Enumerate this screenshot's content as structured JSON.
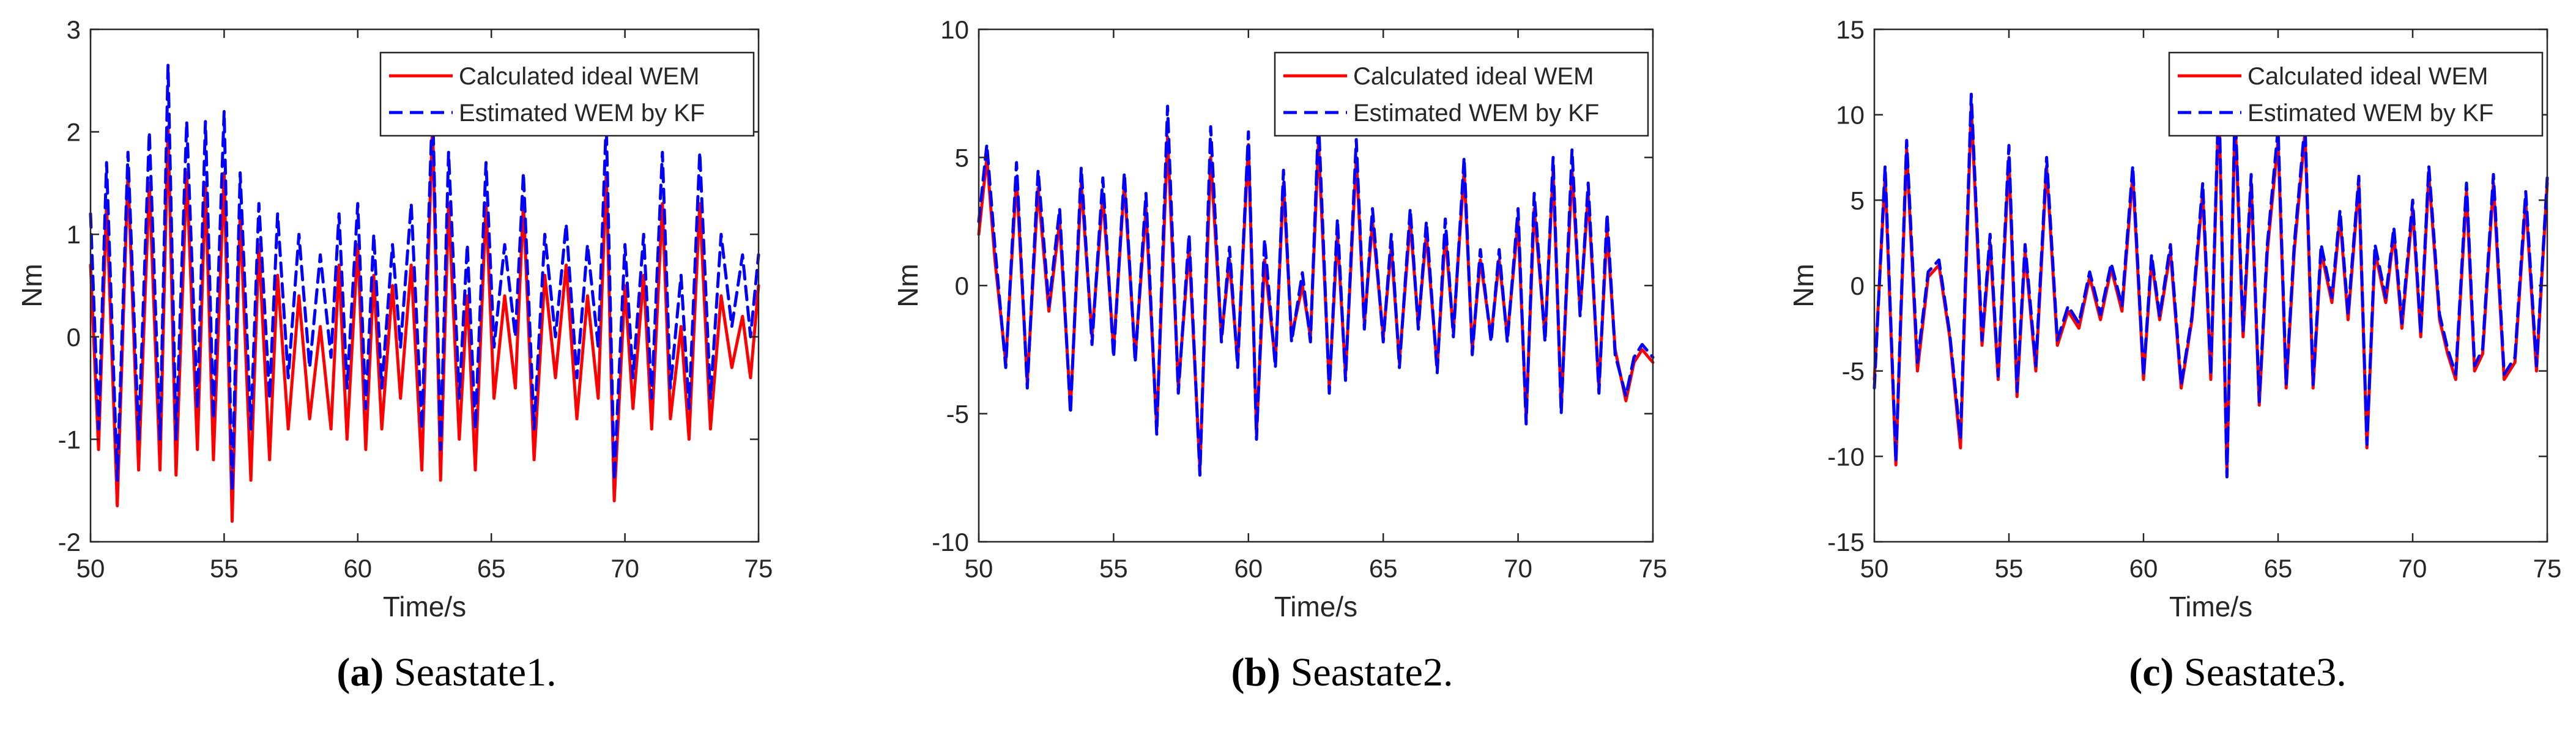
{
  "chart_data": [
    {
      "type": "line",
      "panel": "a",
      "caption_label": "(a)",
      "caption_text": "Seastate1.",
      "xlabel": "Time/s",
      "ylabel": "Nm",
      "xlim": [
        50,
        75
      ],
      "ylim": [
        -2,
        3
      ],
      "xticks": [
        50,
        55,
        60,
        65,
        70,
        75
      ],
      "yticks": [
        -2,
        -1,
        0,
        1,
        2,
        3
      ],
      "legend_position": "top-right",
      "x": [
        50.0,
        50.3,
        50.6,
        51.0,
        51.4,
        51.8,
        52.2,
        52.6,
        52.9,
        53.2,
        53.6,
        54.0,
        54.3,
        54.6,
        55.0,
        55.3,
        55.6,
        56.0,
        56.3,
        56.7,
        57.0,
        57.4,
        57.8,
        58.2,
        58.6,
        59.0,
        59.3,
        59.6,
        60.0,
        60.3,
        60.6,
        60.9,
        61.3,
        61.6,
        62.0,
        62.4,
        62.8,
        63.1,
        63.4,
        63.8,
        64.1,
        64.4,
        64.8,
        65.1,
        65.5,
        65.9,
        66.2,
        66.6,
        67.0,
        67.4,
        67.8,
        68.2,
        68.6,
        69.0,
        69.3,
        69.6,
        70.0,
        70.3,
        70.7,
        71.0,
        71.4,
        71.7,
        72.1,
        72.4,
        72.8,
        73.2,
        73.6,
        74.0,
        74.4,
        74.7,
        75.0
      ],
      "series": [
        {
          "name": "Calculated ideal WEM",
          "color": "#ff0000",
          "dash": "solid",
          "values": [
            0.7,
            -1.1,
            1.3,
            -1.65,
            1.6,
            -1.3,
            1.5,
            -1.3,
            2.05,
            -1.35,
            1.6,
            -1.1,
            1.5,
            -1.2,
            1.6,
            -1.8,
            1.2,
            -1.4,
            0.9,
            -1.2,
            0.6,
            -0.9,
            0.4,
            -0.8,
            0.1,
            -0.9,
            0.7,
            -1.0,
            0.9,
            -1.1,
            0.6,
            -0.9,
            0.5,
            -0.6,
            0.7,
            -1.3,
            2.1,
            -1.4,
            1.3,
            -1.0,
            0.4,
            -1.3,
            1.3,
            -0.6,
            0.4,
            -0.5,
            1.3,
            -1.2,
            0.6,
            -0.4,
            0.7,
            -0.8,
            0.4,
            -0.6,
            1.6,
            -1.6,
            0.5,
            -0.7,
            0.6,
            -0.9,
            1.3,
            -0.8,
            0.1,
            -1.0,
            1.3,
            -0.9,
            0.4,
            -0.3,
            0.2,
            -0.4,
            0.5
          ]
        },
        {
          "name": "Estimated WEM by KF",
          "color": "#0000ff",
          "dash": "dashed",
          "values": [
            1.2,
            -0.9,
            1.7,
            -1.4,
            1.8,
            -1.0,
            2.0,
            -1.0,
            2.65,
            -1.0,
            2.1,
            -0.7,
            2.1,
            -0.8,
            2.2,
            -1.5,
            1.6,
            -0.9,
            1.3,
            -0.6,
            1.2,
            -0.4,
            1.0,
            -0.3,
            0.8,
            -0.2,
            1.2,
            -0.5,
            1.3,
            -0.7,
            1.0,
            -0.5,
            0.9,
            -0.1,
            1.3,
            -0.9,
            2.3,
            -1.1,
            1.8,
            -0.6,
            0.9,
            -0.9,
            1.7,
            -0.1,
            0.9,
            0.0,
            1.6,
            -0.9,
            1.0,
            0.0,
            1.1,
            -0.4,
            0.9,
            -0.1,
            2.1,
            -1.4,
            0.9,
            -0.4,
            1.0,
            -0.6,
            1.8,
            -0.5,
            0.6,
            -0.7,
            1.8,
            -0.6,
            1.0,
            0.1,
            0.8,
            0.0,
            0.8
          ]
        }
      ]
    },
    {
      "type": "line",
      "panel": "b",
      "caption_label": "(b)",
      "caption_text": "Seastate2.",
      "xlabel": "Time/s",
      "ylabel": "Nm",
      "xlim": [
        50,
        75
      ],
      "ylim": [
        -10,
        10
      ],
      "xticks": [
        50,
        55,
        60,
        65,
        70,
        75
      ],
      "yticks": [
        -10,
        -5,
        0,
        5,
        10
      ],
      "legend_position": "top-right",
      "x": [
        50.0,
        50.3,
        50.6,
        51.0,
        51.4,
        51.8,
        52.2,
        52.6,
        53.0,
        53.4,
        53.8,
        54.2,
        54.6,
        55.0,
        55.4,
        55.8,
        56.2,
        56.6,
        57.0,
        57.4,
        57.8,
        58.2,
        58.6,
        59.0,
        59.3,
        59.6,
        60.0,
        60.3,
        60.6,
        61.0,
        61.3,
        61.6,
        62.0,
        62.3,
        62.6,
        63.0,
        63.3,
        63.6,
        64.0,
        64.3,
        64.6,
        65.0,
        65.3,
        65.6,
        66.0,
        66.3,
        66.6,
        67.0,
        67.3,
        67.6,
        68.0,
        68.3,
        68.6,
        69.0,
        69.3,
        69.6,
        70.0,
        70.3,
        70.6,
        71.0,
        71.3,
        71.6,
        72.0,
        72.3,
        72.6,
        73.0,
        73.3,
        73.6,
        74.0,
        74.3,
        74.6,
        75.0
      ],
      "series": [
        {
          "name": "Calculated ideal WEM",
          "color": "#ff0000",
          "dash": "solid",
          "values": [
            2.0,
            5.0,
            1.0,
            -3.0,
            4.2,
            -3.8,
            3.8,
            -1.0,
            2.5,
            -4.8,
            4.0,
            -2.0,
            3.5,
            -2.5,
            4.0,
            -2.8,
            3.0,
            -5.6,
            5.8,
            -4.0,
            1.5,
            -7.2,
            5.0,
            -2.0,
            1.0,
            -3.0,
            5.5,
            -5.8,
            1.0,
            -3.0,
            4.0,
            -2.0,
            0.0,
            -2.0,
            5.6,
            -4.0,
            2.0,
            -3.5,
            5.0,
            -1.5,
            2.5,
            -2.0,
            1.5,
            -3.0,
            2.5,
            -1.5,
            2.0,
            -3.2,
            2.0,
            -1.8,
            4.5,
            -2.5,
            1.0,
            -2.0,
            1.0,
            -2.0,
            2.5,
            -5.2,
            3.0,
            -2.0,
            4.5,
            -4.8,
            4.5,
            -1.0,
            3.5,
            -4.0,
            2.2,
            -2.5,
            -4.5,
            -3.0,
            -2.5,
            -3.0
          ]
        },
        {
          "name": "Estimated WEM by KF",
          "color": "#0000ff",
          "dash": "dashed",
          "values": [
            2.5,
            5.5,
            1.5,
            -3.2,
            4.8,
            -4.0,
            4.5,
            -0.8,
            3.0,
            -5.0,
            4.6,
            -2.3,
            4.2,
            -2.8,
            4.4,
            -3.0,
            3.6,
            -5.8,
            7.0,
            -4.2,
            2.0,
            -7.4,
            6.2,
            -2.2,
            1.5,
            -3.2,
            6.0,
            -6.0,
            1.8,
            -3.2,
            4.5,
            -2.2,
            0.5,
            -2.2,
            6.5,
            -4.2,
            2.6,
            -3.7,
            5.7,
            -1.7,
            3.0,
            -2.2,
            2.0,
            -3.2,
            3.0,
            -1.7,
            2.5,
            -3.4,
            2.6,
            -2.0,
            5.0,
            -2.7,
            1.4,
            -2.2,
            1.4,
            -2.2,
            3.0,
            -5.4,
            3.6,
            -2.2,
            5.0,
            -5.0,
            5.3,
            -1.2,
            4.0,
            -4.2,
            2.8,
            -2.7,
            -4.3,
            -2.8,
            -2.3,
            -2.8
          ]
        }
      ]
    },
    {
      "type": "line",
      "panel": "c",
      "caption_label": "(c)",
      "caption_text": "Seastate3.",
      "xlabel": "Time/s",
      "ylabel": "Nm",
      "xlim": [
        50,
        75
      ],
      "ylim": [
        -15,
        15
      ],
      "xticks": [
        50,
        55,
        60,
        65,
        70,
        75
      ],
      "yticks": [
        -15,
        -10,
        -5,
        0,
        5,
        10,
        15
      ],
      "legend_position": "top-right",
      "x": [
        50.0,
        50.4,
        50.8,
        51.2,
        51.6,
        52.0,
        52.4,
        52.8,
        53.2,
        53.6,
        54.0,
        54.3,
        54.6,
        55.0,
        55.3,
        55.6,
        56.0,
        56.4,
        56.8,
        57.2,
        57.6,
        58.0,
        58.4,
        58.8,
        59.2,
        59.6,
        60.0,
        60.3,
        60.6,
        61.0,
        61.4,
        61.8,
        62.2,
        62.5,
        62.8,
        63.1,
        63.4,
        63.7,
        64.0,
        64.3,
        64.6,
        65.0,
        65.3,
        65.6,
        66.0,
        66.3,
        66.6,
        67.0,
        67.3,
        67.6,
        68.0,
        68.3,
        68.6,
        69.0,
        69.3,
        69.6,
        70.0,
        70.3,
        70.6,
        71.0,
        71.3,
        71.6,
        72.0,
        72.3,
        72.6,
        73.0,
        73.4,
        73.8,
        74.2,
        74.6,
        75.0
      ],
      "series": [
        {
          "name": "Calculated ideal WEM",
          "color": "#ff0000",
          "dash": "solid",
          "values": [
            -5.5,
            6.5,
            -10.5,
            8.0,
            -5.0,
            0.5,
            1.2,
            -3.0,
            -9.5,
            10.5,
            -3.5,
            2.5,
            -5.5,
            7.5,
            -6.5,
            2.0,
            -5.0,
            7.0,
            -3.5,
            -1.5,
            -2.5,
            0.5,
            -2.0,
            1.0,
            -1.5,
            6.5,
            -5.5,
            1.5,
            -2.0,
            2.0,
            -6.0,
            -2.0,
            5.5,
            -5.5,
            11.0,
            -11.0,
            10.0,
            -3.0,
            6.0,
            -7.0,
            2.0,
            8.5,
            -6.0,
            2.0,
            9.0,
            -6.0,
            2.0,
            -1.0,
            4.0,
            -2.0,
            6.0,
            -9.5,
            2.0,
            -1.0,
            3.0,
            -2.5,
            4.5,
            -3.0,
            6.5,
            -2.0,
            -4.0,
            -5.5,
            5.5,
            -5.0,
            -4.0,
            6.0,
            -5.5,
            -4.5,
            5.0,
            -5.0,
            6.0
          ]
        },
        {
          "name": "Estimated WEM by KF",
          "color": "#0000ff",
          "dash": "dashed",
          "values": [
            -6.0,
            7.0,
            -10.3,
            8.5,
            -4.5,
            0.8,
            1.5,
            -2.8,
            -9.0,
            11.2,
            -3.2,
            3.0,
            -5.3,
            8.2,
            -6.2,
            2.4,
            -4.7,
            7.5,
            -3.2,
            -1.2,
            -2.2,
            0.8,
            -1.7,
            1.3,
            -1.2,
            7.0,
            -5.3,
            1.8,
            -1.8,
            2.4,
            -5.8,
            -1.8,
            6.0,
            -5.2,
            11.5,
            -11.2,
            10.5,
            -2.7,
            6.5,
            -6.8,
            2.4,
            9.2,
            -5.8,
            2.4,
            9.5,
            -5.8,
            2.4,
            -0.7,
            4.4,
            -1.7,
            6.4,
            -9.3,
            2.4,
            -0.7,
            3.4,
            -2.2,
            5.0,
            -2.8,
            7.0,
            -1.7,
            -3.7,
            -5.2,
            6.0,
            -4.7,
            -3.7,
            6.5,
            -5.2,
            -4.2,
            5.5,
            -4.7,
            6.3
          ]
        }
      ]
    }
  ]
}
